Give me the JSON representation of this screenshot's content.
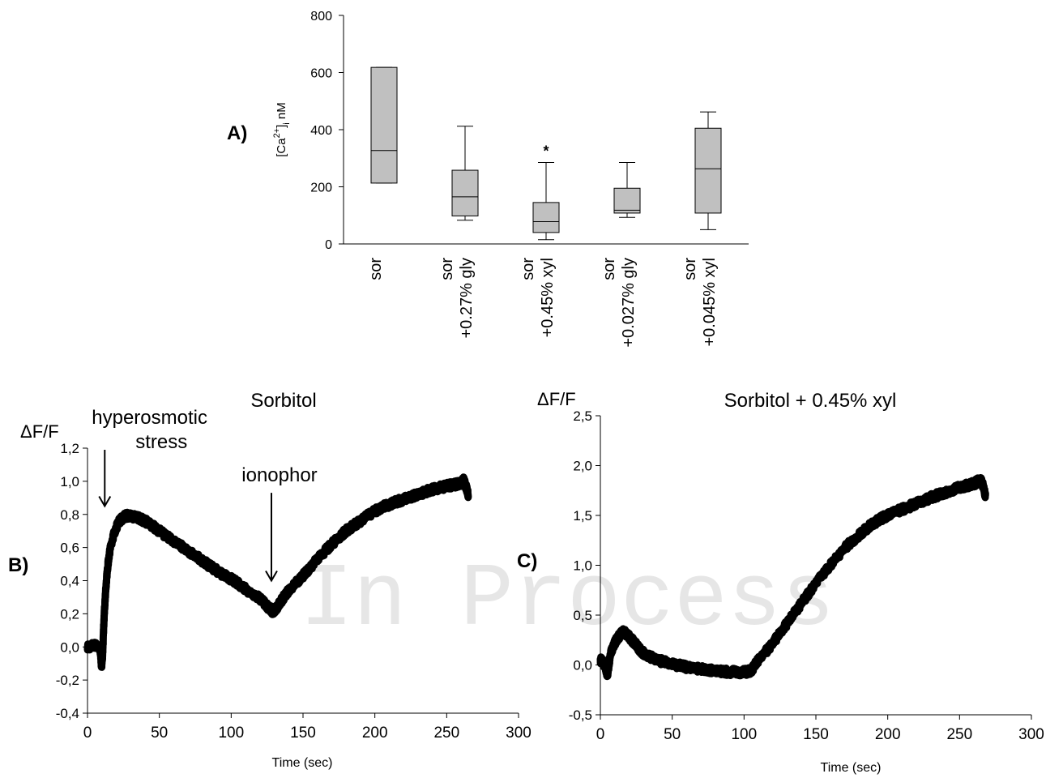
{
  "watermark": "In Process",
  "colors": {
    "box_fill": "#c0c0c0",
    "ink": "#000000",
    "watermark": "#e6e6e6"
  },
  "chart_data": [
    {
      "type": "box",
      "panel_label": "A)",
      "ylabel_main": "[Ca",
      "ylabel_sup": "2+",
      "ylabel_close": "]",
      "ylabel_sub": "i",
      "ylabel_unit": " nM",
      "ylim": [
        0,
        800
      ],
      "yticks": [
        "0",
        "200",
        "400",
        "600",
        "800"
      ],
      "categories": [
        {
          "line1": "sor",
          "line2": "",
          "q1": 213,
          "median": 327,
          "q3": 618,
          "whisker_low": 213,
          "whisker_high": 618,
          "annotation": ""
        },
        {
          "line1": "sor",
          "line2": "+0.27% gly",
          "q1": 98,
          "median": 165,
          "q3": 258,
          "whisker_low": 83,
          "whisker_high": 412,
          "annotation": ""
        },
        {
          "line1": "sor",
          "line2": "+0.45% xyl",
          "q1": 40,
          "median": 78,
          "q3": 145,
          "whisker_low": 15,
          "whisker_high": 285,
          "annotation": "*"
        },
        {
          "line1": "sor",
          "line2": "+0.027% gly",
          "q1": 108,
          "median": 118,
          "q3": 195,
          "whisker_low": 93,
          "whisker_high": 285,
          "annotation": ""
        },
        {
          "line1": "sor",
          "line2": "+0.045% xyl",
          "q1": 108,
          "median": 263,
          "q3": 405,
          "whisker_low": 50,
          "whisker_high": 462,
          "annotation": ""
        }
      ]
    },
    {
      "type": "line",
      "panel_label": "B)",
      "title": "Sorbitol",
      "ylabel": "ΔF/F",
      "xlabel": "Time (sec)",
      "xlim": [
        0,
        300
      ],
      "ylim": [
        -0.4,
        1.2
      ],
      "xticks": [
        "0",
        "50",
        "100",
        "150",
        "200",
        "250",
        "300"
      ],
      "yticks": [
        "-0,4",
        "-0,2",
        "0,0",
        "0,2",
        "0,4",
        "0,6",
        "0,8",
        "1,0",
        "1,2"
      ],
      "series": [
        {
          "x": [
            0,
            8,
            10,
            12,
            15,
            20,
            25,
            30,
            40,
            50,
            60,
            70,
            80,
            90,
            100,
            110,
            120,
            127,
            130,
            135,
            140,
            150,
            160,
            170,
            180,
            190,
            200,
            210,
            220,
            230,
            240,
            250,
            255,
            260,
            262,
            265
          ],
          "y": [
            0.0,
            0.0,
            -0.1,
            0.25,
            0.55,
            0.72,
            0.78,
            0.79,
            0.76,
            0.7,
            0.64,
            0.58,
            0.52,
            0.46,
            0.41,
            0.35,
            0.29,
            0.23,
            0.22,
            0.28,
            0.34,
            0.43,
            0.53,
            0.62,
            0.7,
            0.76,
            0.82,
            0.86,
            0.89,
            0.92,
            0.95,
            0.97,
            0.98,
            0.99,
            1.0,
            0.92
          ]
        }
      ],
      "annotations": [
        {
          "line1": "hyperosmotic",
          "line2": "stress",
          "x": 12,
          "y_from": 1.19,
          "y_to": 0.85
        },
        {
          "line1": "ionophor",
          "line2": "",
          "x": 128,
          "y_from": 0.93,
          "y_to": 0.4
        }
      ]
    },
    {
      "type": "line",
      "panel_label": "C)",
      "title": "Sorbitol + 0.45% xyl",
      "ylabel": "ΔF/F",
      "xlabel": "Time (sec)",
      "xlim": [
        0,
        300
      ],
      "ylim": [
        -0.5,
        2.5
      ],
      "xticks": [
        "0",
        "50",
        "100",
        "150",
        "200",
        "250",
        "300"
      ],
      "yticks": [
        "-0,5",
        "0,0",
        "0,5",
        "1,0",
        "1,5",
        "2,0",
        "2,5"
      ],
      "series": [
        {
          "x": [
            0,
            3,
            5,
            7,
            10,
            15,
            18,
            22,
            25,
            30,
            40,
            50,
            60,
            70,
            80,
            90,
            100,
            105,
            110,
            120,
            130,
            140,
            150,
            160,
            170,
            180,
            190,
            200,
            210,
            220,
            230,
            240,
            250,
            255,
            260,
            265,
            268
          ],
          "y": [
            0.05,
            0.0,
            -0.08,
            0.1,
            0.22,
            0.32,
            0.31,
            0.25,
            0.2,
            0.12,
            0.05,
            0.01,
            -0.02,
            -0.04,
            -0.06,
            -0.07,
            -0.07,
            -0.05,
            0.05,
            0.22,
            0.42,
            0.62,
            0.82,
            1.0,
            1.17,
            1.3,
            1.42,
            1.5,
            1.56,
            1.62,
            1.68,
            1.73,
            1.78,
            1.8,
            1.82,
            1.84,
            1.7
          ]
        }
      ],
      "annotations": []
    }
  ]
}
